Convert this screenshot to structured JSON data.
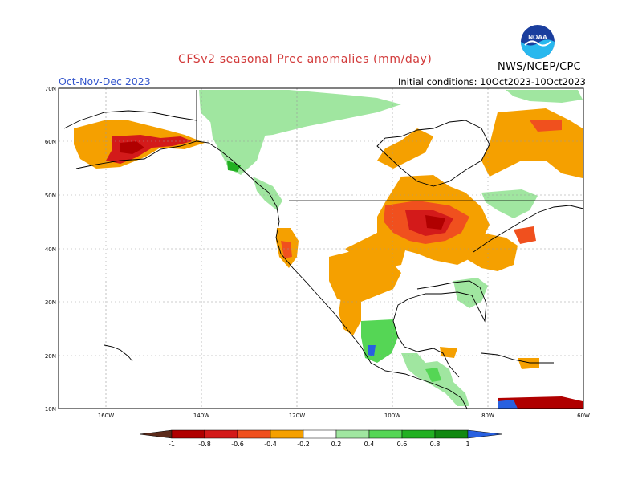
{
  "header": {
    "title": "CFSv2 seasonal Prec anomalies (mm/day)",
    "season": "Oct-Nov-Dec 2023",
    "initial_conditions": "Initial conditions: 10Oct2023-10Oct2023",
    "agency": "NWS/NCEP/CPC",
    "logo_text": "NOAA"
  },
  "map": {
    "lat_labels": [
      "70N",
      "60N",
      "50N",
      "40N",
      "30N",
      "20N",
      "10N"
    ],
    "lon_labels": [
      "160W",
      "140W",
      "120W",
      "100W",
      "80W",
      "60W"
    ]
  },
  "legend": {
    "ticks": [
      "-1",
      "-0.8",
      "-0.6",
      "-0.4",
      "-0.2",
      "0.2",
      "0.4",
      "0.6",
      "0.8",
      "1"
    ],
    "colors": [
      "#5c2a1a",
      "#b00000",
      "#d31a1a",
      "#f0501e",
      "#f5a000",
      "#ffffff",
      "#a0e6a0",
      "#55d655",
      "#22b022",
      "#118811",
      "#2860e0"
    ]
  }
}
